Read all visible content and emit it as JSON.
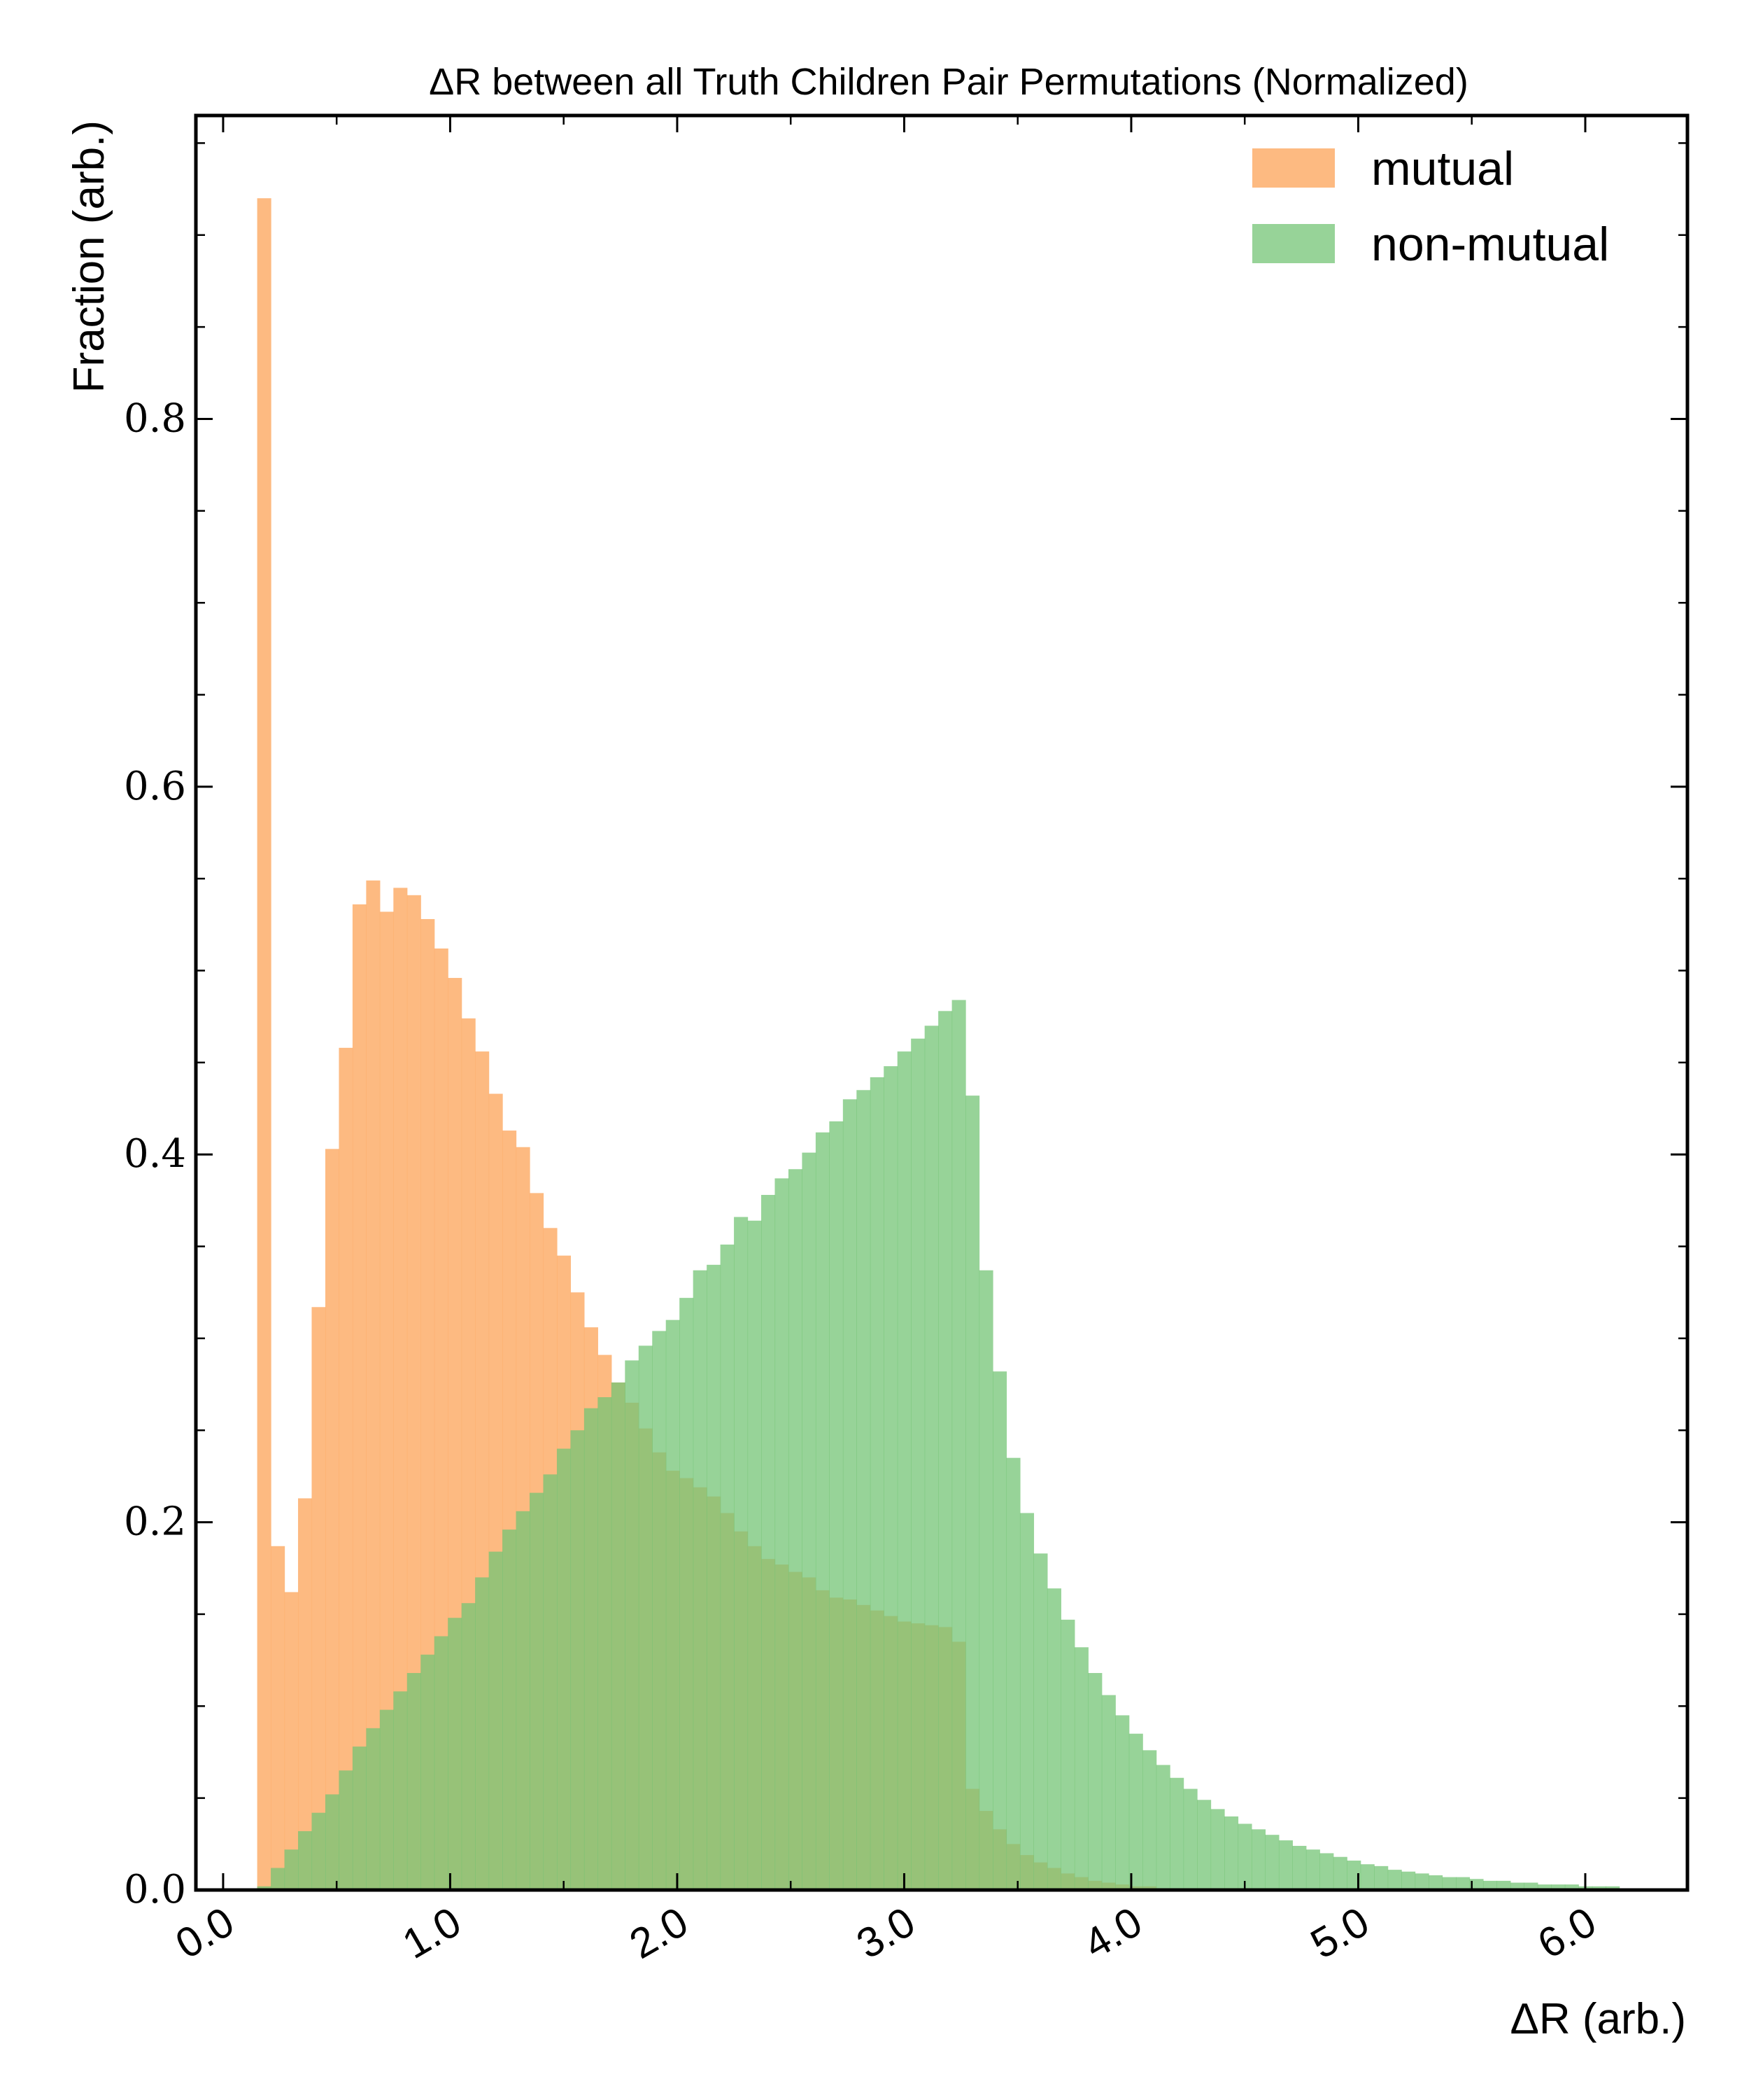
{
  "chart_data": {
    "type": "histogram",
    "title": "ΔR between all Truth Children Pair Permutations (Normalized)",
    "xlabel": "ΔR (arb.)",
    "ylabel": "Fraction (arb.)",
    "xlim": [
      -0.12,
      6.45
    ],
    "ylim": [
      0,
      0.965
    ],
    "bin_start": 0.15,
    "bin_width": 0.06,
    "x_ticks": [
      0,
      1,
      2,
      3,
      4,
      5,
      6
    ],
    "x_tick_labels": [
      "0.0",
      "1.0",
      "2.0",
      "3.0",
      "4.0",
      "5.0",
      "6.0"
    ],
    "y_ticks": [
      0,
      0.2,
      0.4,
      0.6,
      0.8
    ],
    "y_tick_labels": [
      "0.0",
      "0.2",
      "0.4",
      "0.6",
      "0.8"
    ],
    "legend_position": "top-right",
    "series": [
      {
        "name": "mutual",
        "color": "#fdae6b",
        "opacity": 0.85,
        "values": [
          0.92,
          0.187,
          0.162,
          0.213,
          0.317,
          0.403,
          0.458,
          0.536,
          0.549,
          0.532,
          0.545,
          0.541,
          0.528,
          0.512,
          0.496,
          0.474,
          0.456,
          0.433,
          0.413,
          0.404,
          0.379,
          0.36,
          0.345,
          0.325,
          0.306,
          0.291,
          0.276,
          0.265,
          0.251,
          0.238,
          0.228,
          0.224,
          0.219,
          0.214,
          0.205,
          0.195,
          0.187,
          0.18,
          0.177,
          0.173,
          0.17,
          0.163,
          0.159,
          0.158,
          0.155,
          0.152,
          0.149,
          0.146,
          0.145,
          0.144,
          0.143,
          0.135,
          0.055,
          0.043,
          0.033,
          0.025,
          0.019,
          0.015,
          0.012,
          0.009,
          0.007,
          0.005,
          0.004,
          0.003,
          0.002,
          0.002,
          0.001,
          0.001,
          0.001,
          0.001,
          0.001,
          0.001,
          0.001,
          0.001,
          0.001,
          0.0005,
          0.0005,
          0.0005,
          0.0005,
          0.0005,
          0.0003,
          0.0003,
          0.0003,
          0.0003,
          0.0002,
          0.0002,
          0.0002,
          0.0002,
          0.0002,
          0.0001,
          0.0001,
          0.0001,
          0.0001,
          0.0001,
          0.0001,
          0.0001,
          0.0001,
          0.0001,
          0.0001,
          0.0001
        ]
      },
      {
        "name": "non-mutual",
        "color": "#74c476",
        "opacity": 0.75,
        "values": [
          0.002,
          0.012,
          0.022,
          0.032,
          0.042,
          0.052,
          0.065,
          0.078,
          0.088,
          0.098,
          0.108,
          0.118,
          0.128,
          0.138,
          0.148,
          0.156,
          0.17,
          0.184,
          0.196,
          0.206,
          0.216,
          0.226,
          0.24,
          0.25,
          0.262,
          0.268,
          0.276,
          0.288,
          0.296,
          0.304,
          0.31,
          0.322,
          0.337,
          0.34,
          0.351,
          0.366,
          0.364,
          0.378,
          0.387,
          0.392,
          0.401,
          0.412,
          0.418,
          0.43,
          0.435,
          0.442,
          0.448,
          0.456,
          0.463,
          0.47,
          0.478,
          0.484,
          0.432,
          0.337,
          0.282,
          0.235,
          0.205,
          0.183,
          0.164,
          0.147,
          0.132,
          0.118,
          0.106,
          0.095,
          0.085,
          0.076,
          0.068,
          0.061,
          0.055,
          0.049,
          0.044,
          0.04,
          0.036,
          0.033,
          0.03,
          0.027,
          0.024,
          0.022,
          0.02,
          0.018,
          0.016,
          0.014,
          0.013,
          0.011,
          0.01,
          0.009,
          0.008,
          0.007,
          0.007,
          0.006,
          0.005,
          0.005,
          0.004,
          0.004,
          0.003,
          0.003,
          0.003,
          0.002,
          0.002,
          0.002
        ]
      }
    ]
  }
}
